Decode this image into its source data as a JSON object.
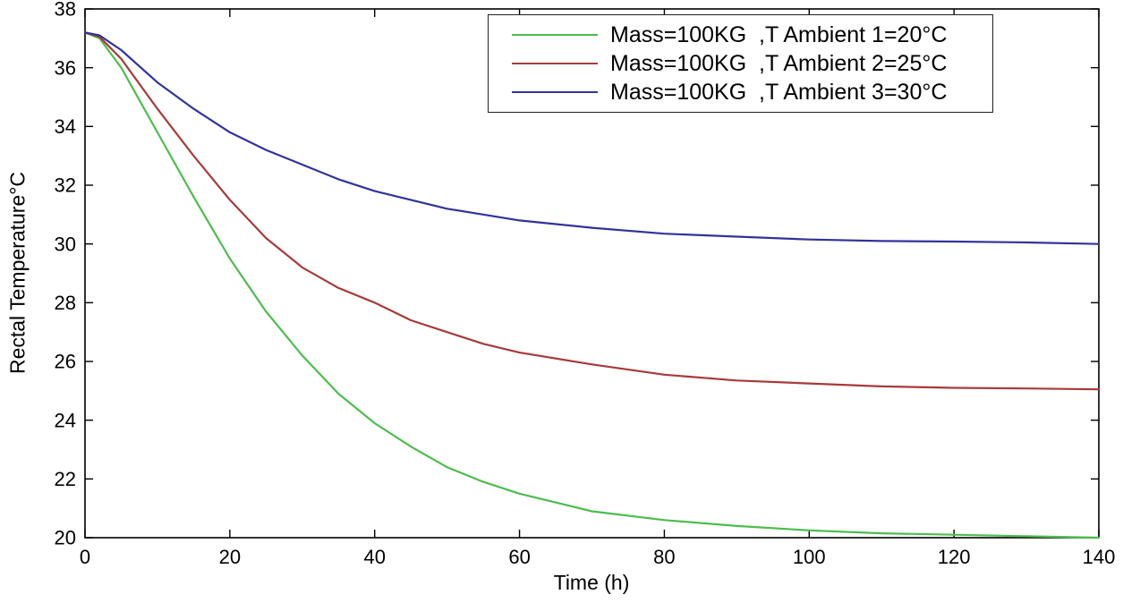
{
  "chart_data": {
    "type": "line",
    "title": "",
    "xlabel": "Time (h)",
    "ylabel": "Rectal Temperature°C",
    "xlim": [
      0,
      140
    ],
    "ylim": [
      20,
      38
    ],
    "xticks": [
      0,
      20,
      40,
      60,
      80,
      100,
      120,
      140
    ],
    "yticks": [
      20,
      22,
      24,
      26,
      28,
      30,
      32,
      34,
      36,
      38
    ],
    "grid": false,
    "legend_position": "upper-center-right",
    "x": [
      0,
      2,
      5,
      10,
      15,
      20,
      25,
      30,
      35,
      40,
      45,
      50,
      55,
      60,
      70,
      80,
      90,
      100,
      110,
      120,
      130,
      140
    ],
    "series": [
      {
        "name": "Mass=100KG  ,T Ambient 1=20°C",
        "ambient_temperature_c": 20,
        "mass_kg": 100,
        "color": "#4dbd4d",
        "values": [
          37.2,
          37.0,
          36.0,
          33.8,
          31.6,
          29.5,
          27.7,
          26.2,
          24.9,
          23.9,
          23.1,
          22.4,
          21.9,
          21.5,
          20.9,
          20.6,
          20.4,
          20.25,
          20.15,
          20.1,
          20.05,
          20.0
        ]
      },
      {
        "name": "Mass=100KG  ,T Ambient 2=25°C",
        "ambient_temperature_c": 25,
        "mass_kg": 100,
        "color": "#a83a3a",
        "values": [
          37.2,
          37.05,
          36.3,
          34.6,
          33.0,
          31.5,
          30.2,
          29.2,
          28.5,
          28.0,
          27.4,
          27.0,
          26.6,
          26.3,
          25.9,
          25.55,
          25.35,
          25.25,
          25.15,
          25.1,
          25.08,
          25.05
        ]
      },
      {
        "name": "Mass=100KG  ,T Ambient 3=30°C",
        "ambient_temperature_c": 30,
        "mass_kg": 100,
        "color": "#32329e",
        "values": [
          37.2,
          37.1,
          36.6,
          35.5,
          34.6,
          33.8,
          33.2,
          32.7,
          32.2,
          31.8,
          31.5,
          31.2,
          31.0,
          30.8,
          30.55,
          30.35,
          30.25,
          30.15,
          30.1,
          30.08,
          30.05,
          30.0
        ]
      }
    ]
  },
  "colors": {
    "axis": "#000000",
    "background": "#ffffff",
    "text": "#000000"
  }
}
